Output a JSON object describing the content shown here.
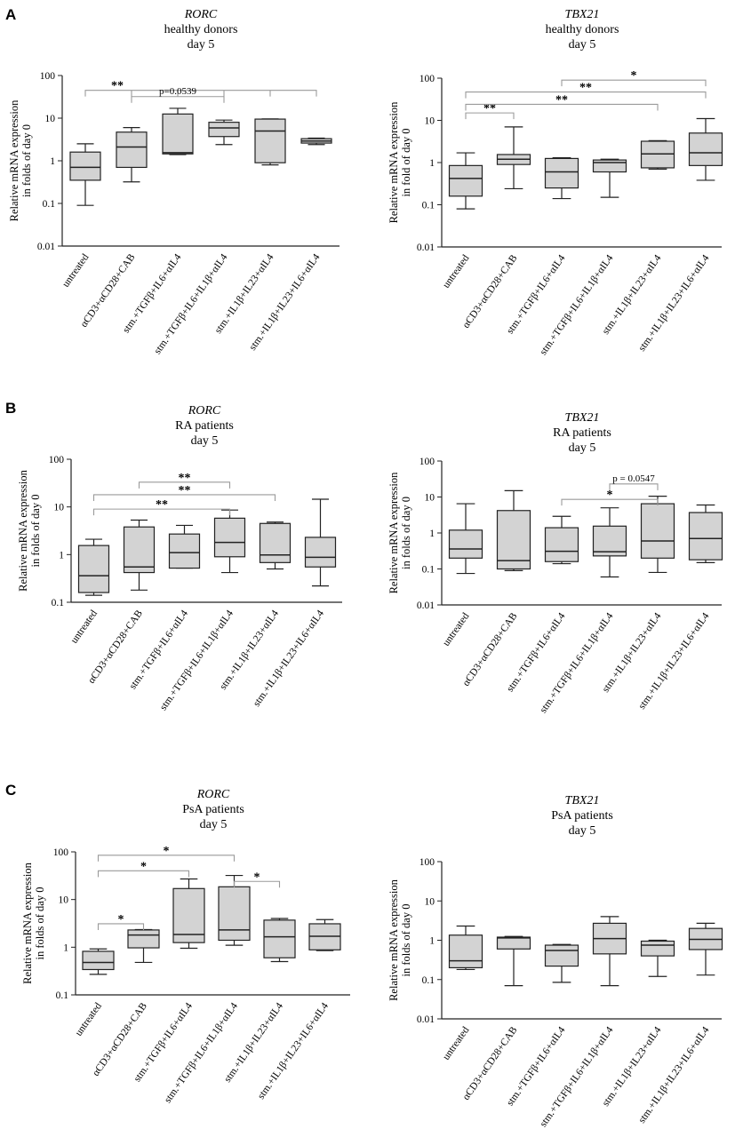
{
  "figure": {
    "chart_data": [
      {
        "id": "A-left",
        "panel": "A",
        "type": "box",
        "title": [
          "RORC",
          "healthy donors",
          "day 5"
        ],
        "ylabel": [
          "Relative mRNA expression",
          "in folds of day 0"
        ],
        "yscale": "log",
        "ylim": [
          0.01,
          100
        ],
        "yticks": [
          0.01,
          0.1,
          1,
          10,
          100
        ],
        "ytick_labels": [
          "0.01",
          "0.1",
          "1",
          "10",
          "100"
        ],
        "categories": [
          "untreated",
          "αCD3+αCD28+CAB",
          "stm.+TGFβ+IL6+αIL4",
          "stm.+TGFβ+IL6+IL1β+αIL4",
          "stm.+IL1β+IL23+αIL4",
          "stm.+IL1β+IL23+IL6+αIL4"
        ],
        "boxes": [
          {
            "min": 0.09,
            "q1": 0.35,
            "median": 0.7,
            "q3": 1.6,
            "max": 2.5
          },
          {
            "min": 0.32,
            "q1": 0.7,
            "median": 2.1,
            "q3": 4.7,
            "max": 6.0
          },
          {
            "min": 1.4,
            "q1": 1.45,
            "median": 1.55,
            "q3": 12.5,
            "max": 17.0
          },
          {
            "min": 2.4,
            "q1": 3.7,
            "median": 5.9,
            "q3": 8.0,
            "max": 9.0
          },
          {
            "min": 0.8,
            "q1": 0.9,
            "median": 5.0,
            "q3": 9.5,
            "max": 9.6
          },
          {
            "min": 2.4,
            "q1": 2.6,
            "median": 2.9,
            "q3": 3.3,
            "max": 3.4
          }
        ],
        "significance": [
          {
            "label": "**",
            "kind": "multi",
            "from": 0,
            "to": [
              1,
              2,
              3,
              4,
              5
            ],
            "y": 45
          },
          {
            "label": "p=0.0539",
            "kind": "pair",
            "from": 1,
            "to": 3,
            "y": 32
          }
        ]
      },
      {
        "id": "A-right",
        "panel": "",
        "type": "box",
        "title": [
          "TBX21",
          "healthy donors",
          "day 5"
        ],
        "ylabel": [
          "Relative mRNA expression",
          "in fold of day 0"
        ],
        "yscale": "log",
        "ylim": [
          0.01,
          100
        ],
        "yticks": [
          0.01,
          0.1,
          1,
          10,
          100
        ],
        "ytick_labels": [
          "0.01",
          "0.1",
          "1",
          "10",
          "100"
        ],
        "categories": [
          "untreated",
          "αCD3+αCD28+CAB",
          "stm.+TGFβ+IL6+αIL4",
          "stm.+TGFβ+IL6+IL1β+αIL4",
          "stm.+IL1β+IL23+αIL4",
          "stm.+IL1β+IL23+IL6+αIL4"
        ],
        "boxes": [
          {
            "min": 0.08,
            "q1": 0.16,
            "median": 0.42,
            "q3": 0.85,
            "max": 1.7
          },
          {
            "min": 0.24,
            "q1": 0.9,
            "median": 1.2,
            "q3": 1.55,
            "max": 7.0
          },
          {
            "min": 0.14,
            "q1": 0.25,
            "median": 0.6,
            "q3": 1.25,
            "max": 1.3
          },
          {
            "min": 0.15,
            "q1": 0.6,
            "median": 1.0,
            "q3": 1.15,
            "max": 1.2
          },
          {
            "min": 0.7,
            "q1": 0.75,
            "median": 1.6,
            "q3": 3.2,
            "max": 3.3
          },
          {
            "min": 0.38,
            "q1": 0.85,
            "median": 1.7,
            "q3": 5.0,
            "max": 11.0
          }
        ],
        "significance": [
          {
            "label": "**",
            "kind": "pair",
            "from": 0,
            "to": 1,
            "y": 15
          },
          {
            "label": "**",
            "kind": "pair",
            "from": 0,
            "to": 4,
            "y": 24
          },
          {
            "label": "**",
            "kind": "pair",
            "from": 0,
            "to": 5,
            "y": 47
          },
          {
            "label": "*",
            "kind": "pair",
            "from": 2,
            "to": 5,
            "y": 90
          }
        ]
      },
      {
        "id": "B-left",
        "panel": "B",
        "type": "box",
        "title": [
          "RORC",
          "RA patients",
          "day 5"
        ],
        "ylabel": [
          "Relative mRNA expression",
          "in folds of day 0"
        ],
        "yscale": "log",
        "ylim": [
          0.1,
          100
        ],
        "yticks": [
          0.1,
          1,
          10,
          100
        ],
        "ytick_labels": [
          "0.1",
          "1",
          "10",
          "100"
        ],
        "categories": [
          "untreated",
          "αCD3+αCD28+CAB",
          "stm.+TGFβ+IL6+αIL4",
          "stm.+TGFβ+IL6+IL1β+αIL4",
          "stm.+IL1β+IL23+αIL4",
          "stm.+IL1β+IL23+IL6+αIL4"
        ],
        "boxes": [
          {
            "min": 0.14,
            "q1": 0.16,
            "median": 0.36,
            "q3": 1.55,
            "max": 2.1
          },
          {
            "min": 0.18,
            "q1": 0.42,
            "median": 0.55,
            "q3": 3.8,
            "max": 5.3
          },
          {
            "min": 0.52,
            "q1": 0.52,
            "median": 1.1,
            "q3": 2.7,
            "max": 4.1
          },
          {
            "min": 0.42,
            "q1": 0.9,
            "median": 1.8,
            "q3": 5.8,
            "max": 8.6
          },
          {
            "min": 0.5,
            "q1": 0.68,
            "median": 0.98,
            "q3": 4.5,
            "max": 4.8
          },
          {
            "min": 0.22,
            "q1": 0.55,
            "median": 0.88,
            "q3": 2.3,
            "max": 14.5
          }
        ],
        "significance": [
          {
            "label": "**",
            "kind": "pair",
            "from": 1,
            "to": 3,
            "y": 33
          },
          {
            "label": "**",
            "kind": "pair",
            "from": 0,
            "to": 4,
            "y": 18
          },
          {
            "label": "**",
            "kind": "pair",
            "from": 0,
            "to": 3,
            "y": 9
          }
        ]
      },
      {
        "id": "B-right",
        "panel": "",
        "type": "box",
        "title": [
          "TBX21",
          "RA patients",
          "day 5"
        ],
        "ylabel": [
          "Relative mRNA expression",
          "in folds of day 0"
        ],
        "yscale": "log",
        "ylim": [
          0.01,
          100
        ],
        "yticks": [
          0.01,
          0.1,
          1,
          10,
          100
        ],
        "ytick_labels": [
          "0.01",
          "0.1",
          "1",
          "10",
          "100"
        ],
        "categories": [
          "untreated",
          "αCD3+αCD28+CAB",
          "stm.+TGFβ+IL6+αIL4",
          "stm.+TGFβ+IL6+IL1β+αIL4",
          "stm.+IL1β+IL23+αIL4",
          "stm.+IL1β+IL23+IL6+αIL4"
        ],
        "boxes": [
          {
            "min": 0.075,
            "q1": 0.2,
            "median": 0.36,
            "q3": 1.2,
            "max": 6.5
          },
          {
            "min": 0.09,
            "q1": 0.1,
            "median": 0.17,
            "q3": 4.2,
            "max": 15.0
          },
          {
            "min": 0.14,
            "q1": 0.16,
            "median": 0.31,
            "q3": 1.4,
            "max": 2.9
          },
          {
            "min": 0.06,
            "q1": 0.23,
            "median": 0.3,
            "q3": 1.55,
            "max": 5.0
          },
          {
            "min": 0.08,
            "q1": 0.2,
            "median": 0.6,
            "q3": 6.5,
            "max": 10.5
          },
          {
            "min": 0.15,
            "q1": 0.18,
            "median": 0.7,
            "q3": 3.7,
            "max": 6.0
          }
        ],
        "significance": [
          {
            "label": "*",
            "kind": "pair",
            "from": 2,
            "to": 4,
            "y": 8.6
          },
          {
            "label": "p = 0.0547",
            "kind": "pair",
            "from": 3,
            "to": 4,
            "y": 23
          }
        ]
      },
      {
        "id": "C-left",
        "panel": "C",
        "type": "box",
        "title": [
          "RORC",
          "PsA patients",
          "day 5"
        ],
        "ylabel": [
          "Relative mRNA expression",
          "in folds of day 0"
        ],
        "yscale": "log",
        "ylim": [
          0.1,
          100
        ],
        "yticks": [
          0.1,
          1,
          10,
          100
        ],
        "ytick_labels": [
          "0.1",
          "1",
          "10",
          "100"
        ],
        "categories": [
          "untreated",
          "αCD3+αCD28+CAB",
          "stm.+TGFβ+IL6+αIL4",
          "stm.+TGFβ+IL6+IL1β+αIL4",
          "stm.+IL1β+IL23+αIL4",
          "stm.+IL1β+IL23+IL6+αIL4"
        ],
        "boxes": [
          {
            "min": 0.27,
            "q1": 0.34,
            "median": 0.48,
            "q3": 0.82,
            "max": 0.92
          },
          {
            "min": 0.48,
            "q1": 0.97,
            "median": 1.8,
            "q3": 2.3,
            "max": 2.35
          },
          {
            "min": 0.95,
            "q1": 1.25,
            "median": 1.85,
            "q3": 17.0,
            "max": 27.0
          },
          {
            "min": 1.1,
            "q1": 1.4,
            "median": 2.3,
            "q3": 18.5,
            "max": 32.0
          },
          {
            "min": 0.5,
            "q1": 0.6,
            "median": 1.65,
            "q3": 3.7,
            "max": 4.0
          },
          {
            "min": 0.85,
            "q1": 0.88,
            "median": 1.7,
            "q3": 3.1,
            "max": 3.8
          }
        ],
        "significance": [
          {
            "label": "*",
            "kind": "pair",
            "from": 0,
            "to": 1,
            "y": 3.1
          },
          {
            "label": "*",
            "kind": "pair",
            "from": 0,
            "to": 3,
            "y": 85
          },
          {
            "label": "*",
            "kind": "pair",
            "from": 0,
            "to": 2,
            "y": 40
          },
          {
            "label": "*",
            "kind": "pair",
            "from": 3,
            "to": 4,
            "y": 24
          }
        ]
      },
      {
        "id": "C-right",
        "panel": "",
        "type": "box",
        "title": [
          "TBX21",
          "PsA patients",
          "day 5"
        ],
        "ylabel": [
          "Relative mRNA expression",
          "in folds of day 0"
        ],
        "yscale": "log",
        "ylim": [
          0.01,
          100
        ],
        "yticks": [
          0.01,
          0.1,
          1,
          10,
          100
        ],
        "ytick_labels": [
          "0.01",
          "0.1",
          "1",
          "10",
          "100"
        ],
        "categories": [
          "untreated",
          "αCD3+αCD28+CAB",
          "stm.+TGFβ+IL6+αIL4",
          "stm.+TGFβ+IL6+IL1β+αIL4",
          "stm.+IL1β+IL23+αIL4",
          "stm.+IL1β+IL23+IL6+αIL4"
        ],
        "boxes": [
          {
            "min": 0.18,
            "q1": 0.2,
            "median": 0.3,
            "q3": 1.35,
            "max": 2.3
          },
          {
            "min": 0.07,
            "q1": 0.6,
            "median": 1.15,
            "q3": 1.2,
            "max": 1.25
          },
          {
            "min": 0.085,
            "q1": 0.22,
            "median": 0.55,
            "q3": 0.75,
            "max": 0.78
          },
          {
            "min": 0.07,
            "q1": 0.45,
            "median": 1.1,
            "q3": 2.7,
            "max": 4.0
          },
          {
            "min": 0.12,
            "q1": 0.4,
            "median": 0.75,
            "q3": 0.95,
            "max": 1.0
          },
          {
            "min": 0.13,
            "q1": 0.58,
            "median": 1.05,
            "q3": 2.0,
            "max": 2.7
          }
        ],
        "significance": []
      }
    ],
    "colors": {
      "box_fill": "#d3d3d3",
      "line": "#222222",
      "bracket": "#9a9a9a"
    }
  }
}
